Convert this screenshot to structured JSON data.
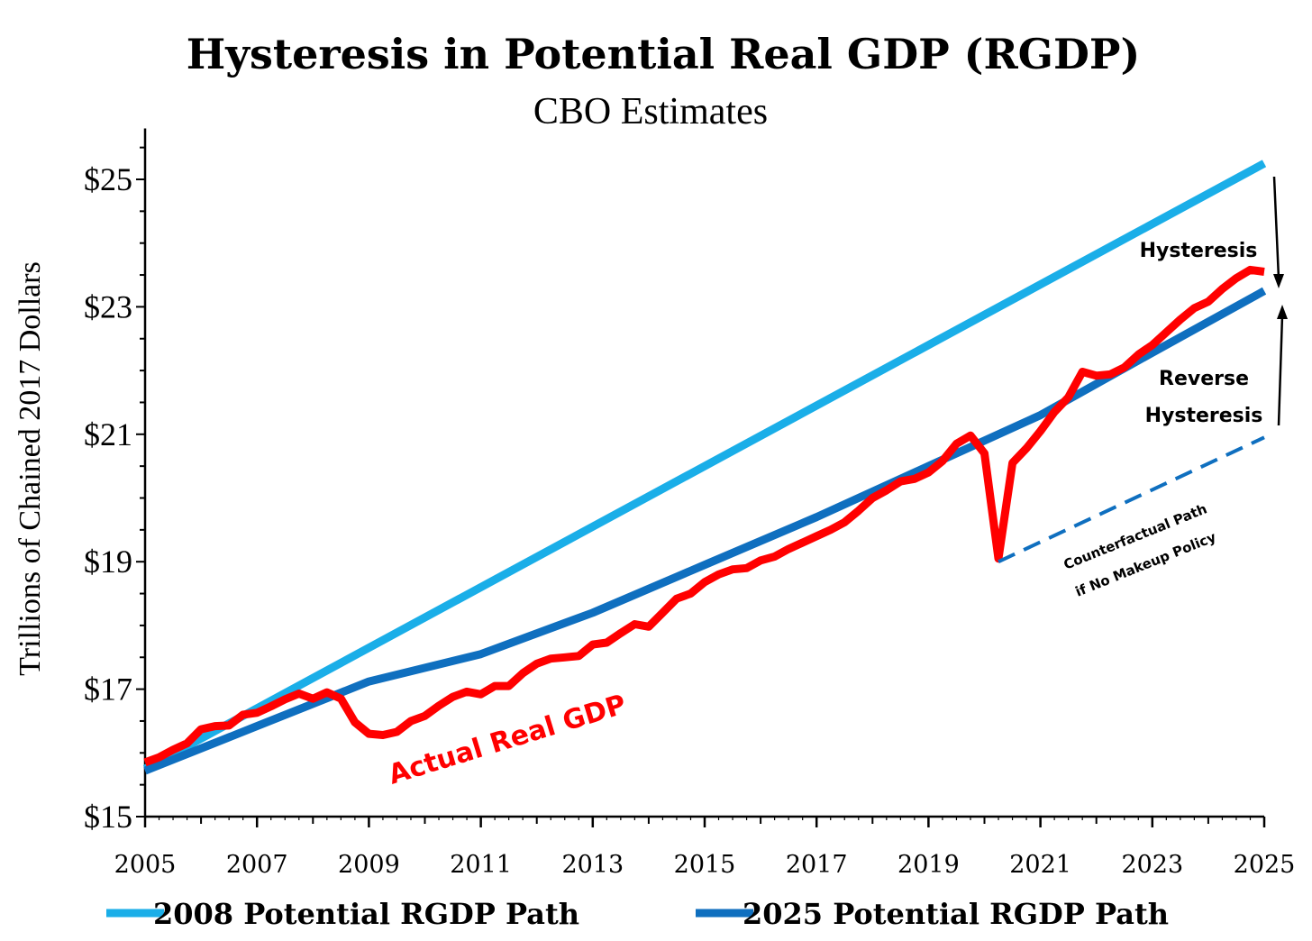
{
  "chart_data": {
    "type": "line",
    "title": "Hysteresis in Potential Real GDP (RGDP)",
    "subtitle": "CBO Estimates",
    "ylabel": "Trillions of Chained 2017 Dollars",
    "xlabel": "",
    "xlim": [
      2005,
      2025
    ],
    "ylim": [
      15,
      25.8
    ],
    "y_ticks": [
      15,
      17,
      19,
      21,
      23,
      25
    ],
    "y_tick_labels": [
      "$15",
      "$17",
      "$19",
      "$21",
      "$23",
      "$25"
    ],
    "x_ticks": [
      2005,
      2007,
      2009,
      2011,
      2013,
      2015,
      2017,
      2019,
      2021,
      2023,
      2025
    ],
    "x_tick_labels": [
      "2005",
      "2007",
      "2009",
      "2011",
      "2013",
      "2015",
      "2017",
      "2019",
      "2021",
      "2023",
      "2025"
    ],
    "grid": false,
    "legend_position": "bottom",
    "series": [
      {
        "name": "2008 Potential RGDP Path",
        "color": "#1aaee8",
        "x": [
          2005,
          2025
        ],
        "y": [
          15.75,
          25.25
        ]
      },
      {
        "name": "2025 Potential RGDP Path",
        "color": "#0f6fbf",
        "x": [
          2005,
          2007,
          2009,
          2011,
          2013,
          2015,
          2017,
          2019,
          2021,
          2023,
          2025
        ],
        "y": [
          15.72,
          16.42,
          17.12,
          17.55,
          18.2,
          18.95,
          19.7,
          20.5,
          21.3,
          22.28,
          23.25
        ]
      },
      {
        "name": "Actual Real GDP",
        "color": "#ff0000",
        "x": [
          2005,
          2005.25,
          2005.5,
          2005.75,
          2006,
          2006.25,
          2006.5,
          2006.75,
          2007,
          2007.25,
          2007.5,
          2007.75,
          2008,
          2008.25,
          2008.5,
          2008.75,
          2009,
          2009.25,
          2009.5,
          2009.75,
          2010,
          2010.25,
          2010.5,
          2010.75,
          2011,
          2011.25,
          2011.5,
          2011.75,
          2012,
          2012.25,
          2012.5,
          2012.75,
          2013,
          2013.25,
          2013.5,
          2013.75,
          2014,
          2014.25,
          2014.5,
          2014.75,
          2015,
          2015.25,
          2015.5,
          2015.75,
          2016,
          2016.25,
          2016.5,
          2016.75,
          2017,
          2017.25,
          2017.5,
          2017.75,
          2018,
          2018.25,
          2018.5,
          2018.75,
          2019,
          2019.25,
          2019.5,
          2019.75,
          2020,
          2020.25,
          2020.5,
          2020.75,
          2021,
          2021.25,
          2021.5,
          2021.75,
          2022,
          2022.25,
          2022.5,
          2022.75,
          2023,
          2023.25,
          2023.5,
          2023.75,
          2024,
          2024.25,
          2024.5,
          2024.75,
          2025
        ],
        "y": [
          15.85,
          15.93,
          16.05,
          16.15,
          16.37,
          16.42,
          16.43,
          16.6,
          16.63,
          16.73,
          16.84,
          16.93,
          16.85,
          16.95,
          16.85,
          16.48,
          16.3,
          16.28,
          16.33,
          16.5,
          16.58,
          16.74,
          16.88,
          16.96,
          16.92,
          17.05,
          17.05,
          17.25,
          17.4,
          17.48,
          17.5,
          17.52,
          17.7,
          17.73,
          17.88,
          18.02,
          17.98,
          18.2,
          18.42,
          18.5,
          18.68,
          18.8,
          18.88,
          18.9,
          19.02,
          19.08,
          19.2,
          19.3,
          19.4,
          19.5,
          19.62,
          19.8,
          20.0,
          20.12,
          20.26,
          20.3,
          20.4,
          20.58,
          20.85,
          20.98,
          20.7,
          19.05,
          20.55,
          20.78,
          21.05,
          21.35,
          21.58,
          21.98,
          21.92,
          21.94,
          22.05,
          22.25,
          22.4,
          22.6,
          22.8,
          22.98,
          23.08,
          23.28,
          23.45,
          23.58,
          23.55
        ]
      }
    ],
    "counterfactual": {
      "x": [
        2020.25,
        2025
      ],
      "y": [
        19.0,
        20.95
      ],
      "color": "#0f6fbf"
    },
    "annotations": {
      "actual_label": "Actual Real GDP",
      "hysteresis": "Hysteresis",
      "reverse_line1": "Reverse",
      "reverse_line2": "Hysteresis",
      "counterfactual_line1": "Counterfactual Path",
      "counterfactual_line2": "if No Makeup Policy"
    },
    "legend": [
      {
        "label": "2008 Potential RGDP Path",
        "color": "#1aaee8"
      },
      {
        "label": "2025 Potential RGDP Path",
        "color": "#0f6fbf"
      }
    ]
  }
}
